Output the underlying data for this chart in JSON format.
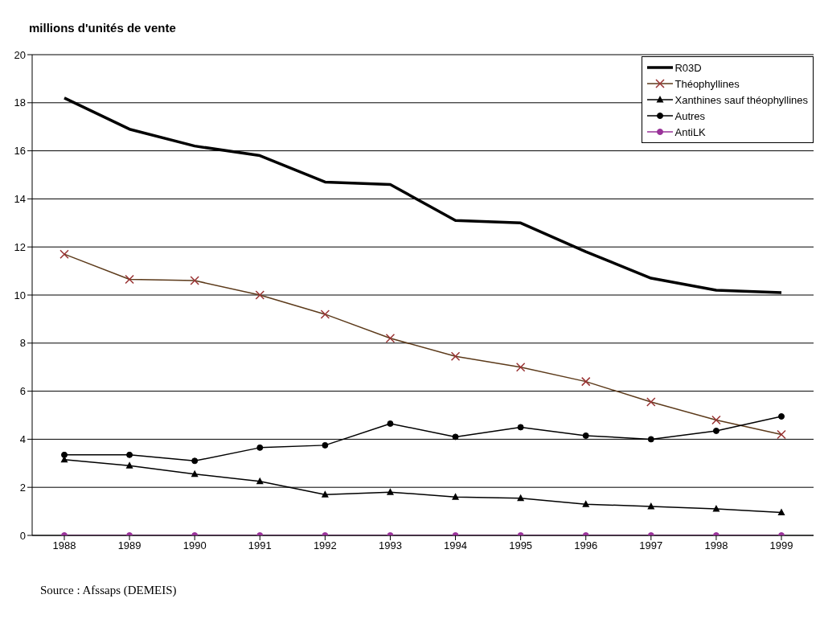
{
  "chart_data": {
    "type": "line",
    "title": "millions d'unités de vente",
    "categories": [
      "1988",
      "1989",
      "1990",
      "1991",
      "1992",
      "1993",
      "1994",
      "1995",
      "1996",
      "1997",
      "1998",
      "1999"
    ],
    "series": [
      {
        "name": "R03D",
        "color": "#000000",
        "marker": "none",
        "values": [
          18.2,
          16.9,
          16.2,
          15.8,
          14.7,
          14.6,
          13.1,
          13.0,
          11.8,
          10.7,
          10.2,
          10.1
        ]
      },
      {
        "name": "Théophyllines",
        "color": "#5c3a1a",
        "marker": "cross",
        "values": [
          11.7,
          10.65,
          10.6,
          10.0,
          9.2,
          8.2,
          7.45,
          7.0,
          6.4,
          5.55,
          4.8,
          4.2
        ]
      },
      {
        "name": "Xanthines sauf théophyllines",
        "color": "#000000",
        "marker": "triangle",
        "values": [
          3.15,
          2.9,
          2.55,
          2.25,
          1.7,
          1.8,
          1.6,
          1.55,
          1.3,
          1.2,
          1.1,
          0.95
        ]
      },
      {
        "name": "Autres",
        "color": "#000000",
        "marker": "circle",
        "values": [
          3.35,
          3.35,
          3.1,
          3.65,
          3.75,
          4.65,
          4.1,
          4.5,
          4.15,
          4.0,
          4.35,
          4.95
        ]
      },
      {
        "name": "AntiLK",
        "color": "#993399",
        "marker": "circle",
        "values": [
          0,
          0,
          0,
          0,
          0,
          0,
          0,
          0,
          0,
          0,
          0,
          0
        ]
      }
    ],
    "ylim": [
      0,
      20
    ],
    "yticks": [
      0,
      2,
      4,
      6,
      8,
      10,
      12,
      14,
      16,
      18,
      20
    ],
    "grid": "y",
    "legend": "top right",
    "annotations": [
      "Source  : Afssaps (DEMEIS)"
    ]
  }
}
